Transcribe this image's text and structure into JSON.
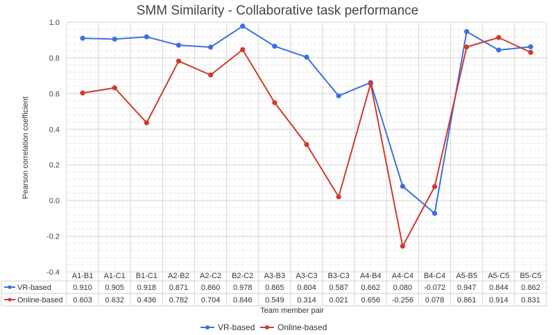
{
  "chart_data": {
    "type": "line",
    "title": "SMM Similarity - Collaborative task performance",
    "xlabel": "Team member pair",
    "ylabel": "Pearson correlation coefficient",
    "ylim": [
      -0.4,
      1.0
    ],
    "yticks": [
      -0.4,
      -0.2,
      0.0,
      0.2,
      0.4,
      0.6,
      0.8,
      1.0
    ],
    "ytick_labels": [
      "-0.4",
      "-0.2",
      "0.0",
      "0.2",
      "0.4",
      "0.6",
      "0.8",
      "1.0"
    ],
    "grid": true,
    "legend_position": "bottom",
    "categories": [
      "A1-B1",
      "A1-C1",
      "B1-C1",
      "A2-B2",
      "A2-C2",
      "B2-C2",
      "A3-B3",
      "A3-C3",
      "B3-C3",
      "A4-B4",
      "A4-C4",
      "B4-C4",
      "A5-B5",
      "A5-C5",
      "B5-C5"
    ],
    "series": [
      {
        "name": "VR-based",
        "color": "#3b6fe0",
        "values": [
          0.91,
          0.905,
          0.918,
          0.871,
          0.86,
          0.978,
          0.865,
          0.804,
          0.587,
          0.662,
          0.08,
          -0.072,
          0.947,
          0.844,
          0.862
        ],
        "labels": [
          "0.910",
          "0.905",
          "0.918",
          "0.871",
          "0.860",
          "0.978",
          "0.865",
          "0.804",
          "0.587",
          "0.662",
          "0.080",
          "-0.072",
          "0.947",
          "0.844",
          "0.862"
        ]
      },
      {
        "name": "Online-based",
        "color": "#d0392b",
        "values": [
          0.603,
          0.632,
          0.436,
          0.782,
          0.704,
          0.846,
          0.549,
          0.314,
          0.021,
          0.656,
          -0.256,
          0.078,
          0.861,
          0.914,
          0.831
        ],
        "labels": [
          "0.603",
          "0.632",
          "0.436",
          "0.782",
          "0.704",
          "0.846",
          "0.549",
          "0.314",
          "0.021",
          "0.656",
          "-0.256",
          "0.078",
          "0.861",
          "0.914",
          "0.831"
        ]
      }
    ]
  }
}
